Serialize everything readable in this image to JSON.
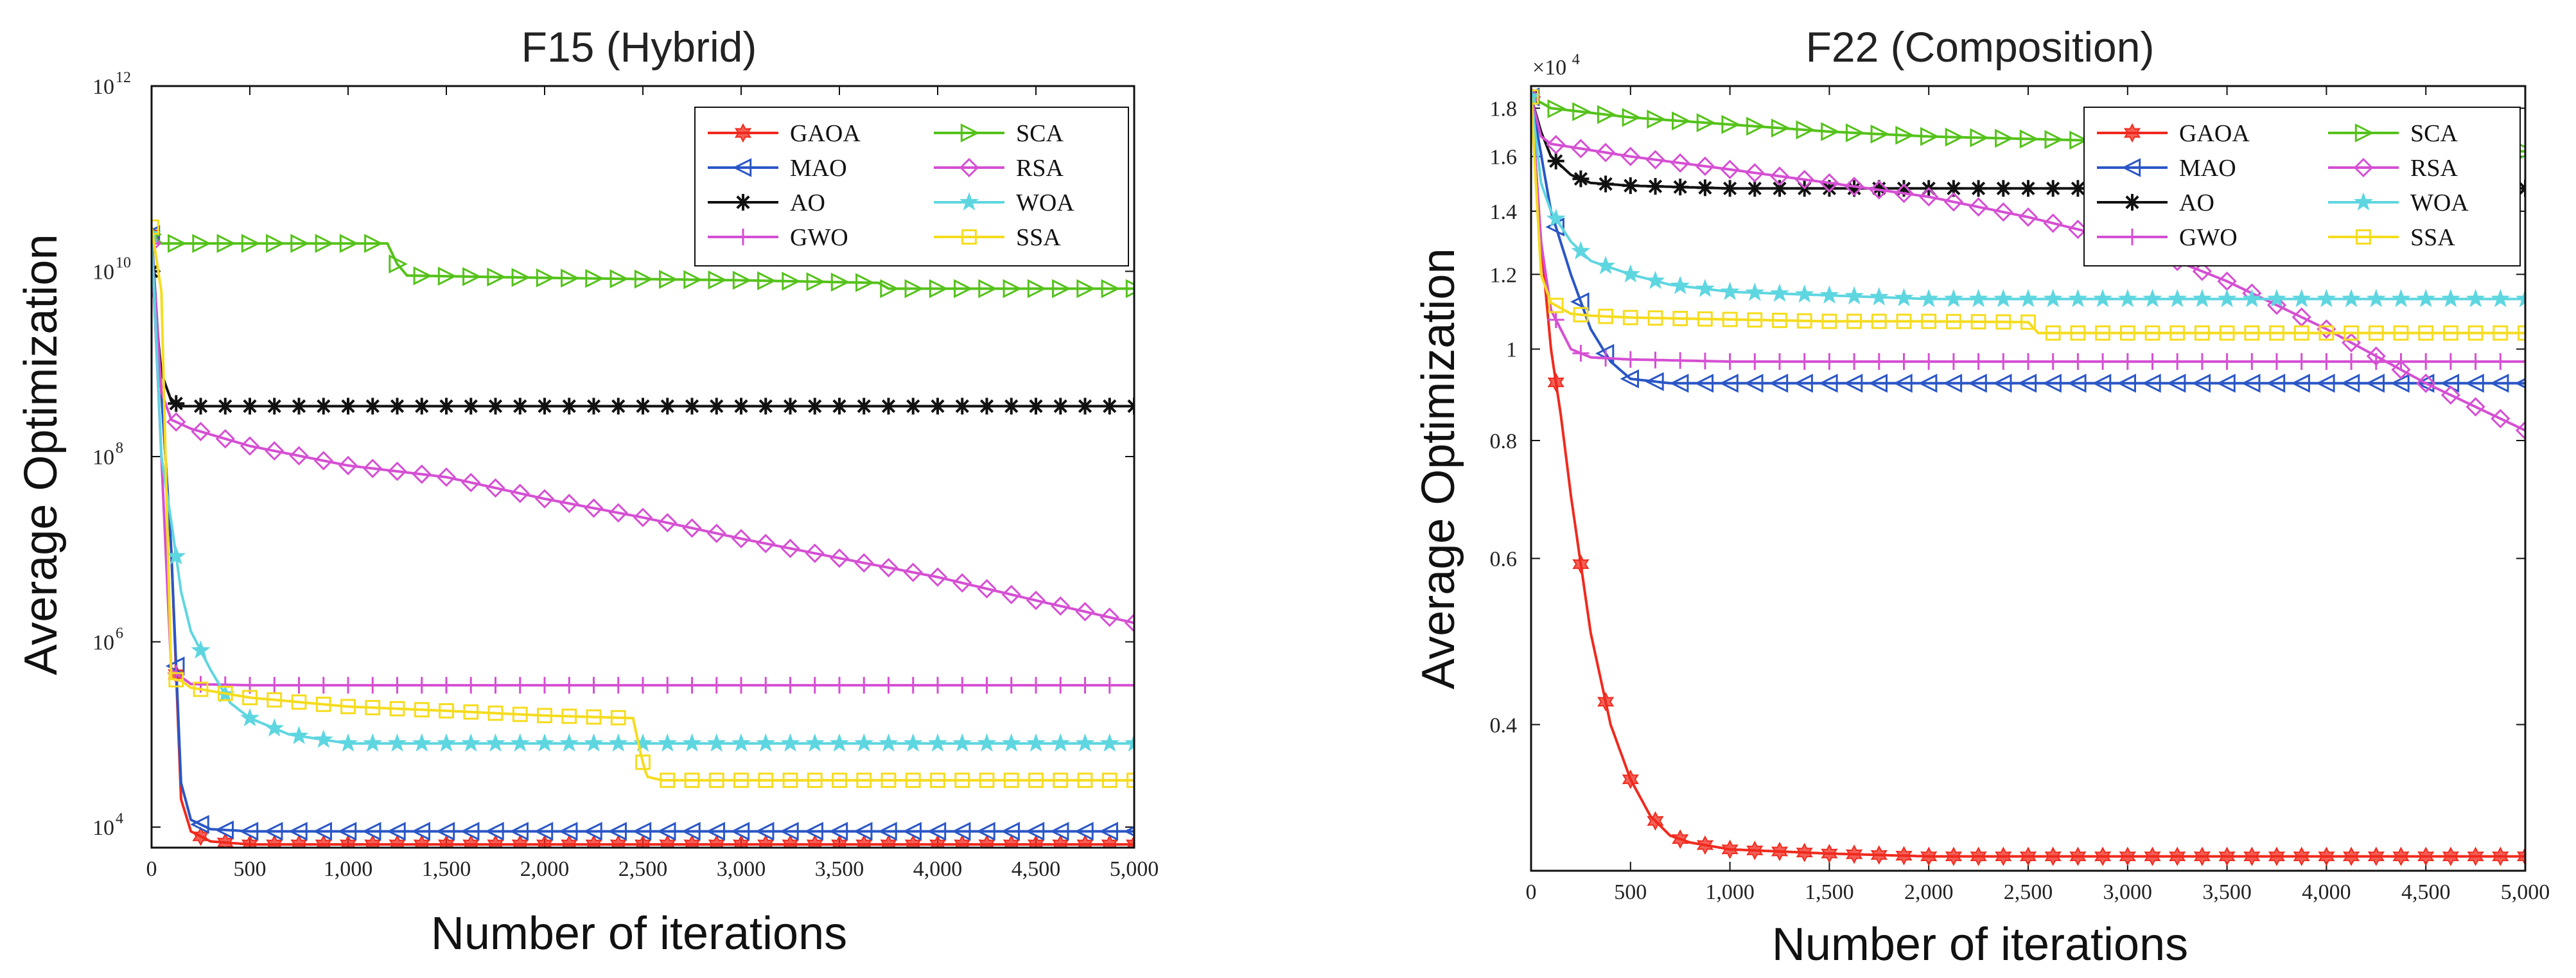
{
  "chart_data": [
    {
      "type": "line",
      "title": "F15 (Hybrid)",
      "xlabel": "Number of iterations",
      "ylabel": "Average Optimization",
      "yscale": "log",
      "xlim": [
        0,
        5000
      ],
      "ylim": [
        6000,
        1000000000000.0
      ],
      "xticks": [
        "0",
        "500",
        "1,000",
        "1,500",
        "2,000",
        "2,500",
        "3,000",
        "3,500",
        "4,000",
        "4,500",
        "5,000"
      ],
      "yticks": [
        {
          "base": "10",
          "exp": "4",
          "value": 10000
        },
        {
          "base": "10",
          "exp": "6",
          "value": 1000000
        },
        {
          "base": "10",
          "exp": "8",
          "value": 100000000
        },
        {
          "base": "10",
          "exp": "10",
          "value": 10000000000
        },
        {
          "base": "10",
          "exp": "12",
          "value": 1000000000000
        }
      ],
      "legend_position": "top-right",
      "series": [
        {
          "name": "GAOA",
          "color": "#f02a1e",
          "marker": "hexstar",
          "x": [
            0,
            100,
            150,
            200,
            300,
            500,
            1000,
            2000,
            3000,
            4000,
            5000
          ],
          "y": [
            25000000000.0,
            10000000.0,
            20000.0,
            9000,
            7000,
            6500,
            6500,
            6500,
            6500,
            6500,
            6500
          ]
        },
        {
          "name": "MAO",
          "color": "#2a56c6",
          "marker": "tri-left",
          "x": [
            0,
            100,
            150,
            200,
            300,
            500,
            1000,
            2000,
            3000,
            4000,
            5000
          ],
          "y": [
            25000000000.0,
            10000000.0,
            30000.0,
            12000.0,
            9500,
            9000,
            9000,
            9000,
            9000,
            9000,
            9000
          ]
        },
        {
          "name": "AO",
          "color": "#111111",
          "marker": "star",
          "x": [
            0,
            50,
            100,
            150,
            300,
            1000,
            2000,
            3000,
            4000,
            5000
          ],
          "y": [
            10000000000.0,
            800000000.0,
            400000000.0,
            350000000.0,
            350000000.0,
            350000000.0,
            350000000.0,
            350000000.0,
            350000000.0,
            350000000.0
          ]
        },
        {
          "name": "GWO",
          "color": "#d54fd3",
          "marker": "plus",
          "x": [
            0,
            50,
            100,
            200,
            500,
            1000,
            2000,
            3000,
            4000,
            5000
          ],
          "y": [
            20000000000.0,
            100000000.0,
            500000.0,
            350000.0,
            340000.0,
            340000.0,
            340000.0,
            340000.0,
            340000.0,
            340000.0
          ]
        },
        {
          "name": "SCA",
          "color": "#55c21b",
          "marker": "tri-right",
          "x": [
            0,
            50,
            1200,
            1250,
            1300,
            2000,
            3000,
            3700,
            3750,
            4000,
            5000
          ],
          "y": [
            25000000000.0,
            20000000000.0,
            20000000000.0,
            12000000000.0,
            9000000000.0,
            8500000000.0,
            8000000000.0,
            7500000000.0,
            6500000000.0,
            6500000000.0,
            6500000000.0
          ]
        },
        {
          "name": "RSA",
          "color": "#d54fd3",
          "marker": "diamond",
          "x": [
            0,
            50,
            100,
            200,
            500,
            1000,
            1500,
            2000,
            2500,
            3000,
            3500,
            4000,
            4500,
            5000
          ],
          "y": [
            20000000000.0,
            500000000.0,
            250000000.0,
            200000000.0,
            130000000.0,
            80000000.0,
            60000000.0,
            35000000.0,
            22000000.0,
            13000000.0,
            8000000.0,
            5000000.0,
            2800000.0,
            1600000.0
          ]
        },
        {
          "name": "WOA",
          "color": "#5ed6e0",
          "marker": "pentstar",
          "x": [
            0,
            50,
            100,
            150,
            200,
            300,
            400,
            500,
            700,
            1000,
            2000,
            3000,
            4000,
            5000
          ],
          "y": [
            25000000000.0,
            100000000.0,
            20000000.0,
            3500000.0,
            1300000.0,
            500000.0,
            220000.0,
            150000.0,
            100000.0,
            80000.0,
            80000.0,
            80000.0,
            80000.0,
            80000.0
          ]
        },
        {
          "name": "SSA",
          "color": "#f5dc1e",
          "marker": "square",
          "x": [
            0,
            50,
            100,
            150,
            200,
            500,
            1000,
            1500,
            2000,
            2450,
            2490,
            2520,
            2600,
            3000,
            4000,
            5000
          ],
          "y": [
            30000000000.0,
            6000000000.0,
            400000.0,
            380000.0,
            320000.0,
            250000.0,
            200000.0,
            180000.0,
            160000.0,
            150000.0,
            60000.0,
            35000.0,
            32000.0,
            32000.0,
            32000.0,
            32000.0
          ]
        }
      ]
    },
    {
      "type": "line",
      "title": "F22 (Composition)",
      "xlabel": "Number of iterations",
      "ylabel": "Average Optimization",
      "yscale": "log",
      "y_multiplier": "×10",
      "y_multiplier_exp": "4",
      "xlim": [
        0,
        5000
      ],
      "ylim": [
        0.28,
        1.9
      ],
      "xticks": [
        "0",
        "500",
        "1,000",
        "1,500",
        "2,000",
        "2,500",
        "3,000",
        "3,500",
        "4,000",
        "4,500",
        "5,000"
      ],
      "yticks": [
        {
          "label": "0.4",
          "value": 0.4
        },
        {
          "label": "0.6",
          "value": 0.6
        },
        {
          "label": "0.8",
          "value": 0.8
        },
        {
          "label": "1",
          "value": 1.0
        },
        {
          "label": "1.2",
          "value": 1.2
        },
        {
          "label": "1.4",
          "value": 1.4
        },
        {
          "label": "1.6",
          "value": 1.6
        },
        {
          "label": "1.8",
          "value": 1.8
        }
      ],
      "legend_position": "top-right",
      "series": [
        {
          "name": "GAOA",
          "color": "#f02a1e",
          "marker": "hexstar",
          "x": [
            0,
            50,
            100,
            150,
            200,
            300,
            400,
            500,
            600,
            700,
            800,
            1000,
            1500,
            2000,
            3000,
            4000,
            5000
          ],
          "y": [
            1.85,
            1.3,
            1.0,
            0.85,
            0.7,
            0.5,
            0.4,
            0.35,
            0.32,
            0.305,
            0.3,
            0.295,
            0.292,
            0.29,
            0.29,
            0.29,
            0.29
          ]
        },
        {
          "name": "MAO",
          "color": "#2a56c6",
          "marker": "tri-left",
          "x": [
            0,
            100,
            200,
            300,
            400,
            500,
            700,
            1000,
            2000,
            3000,
            4000,
            5000
          ],
          "y": [
            1.85,
            1.4,
            1.2,
            1.05,
            0.97,
            0.93,
            0.92,
            0.92,
            0.92,
            0.92,
            0.92,
            0.92
          ]
        },
        {
          "name": "AO",
          "color": "#111111",
          "marker": "star",
          "x": [
            0,
            50,
            100,
            200,
            300,
            500,
            1000,
            2000,
            3000,
            4000,
            5000
          ],
          "y": [
            1.85,
            1.7,
            1.6,
            1.53,
            1.5,
            1.49,
            1.48,
            1.48,
            1.48,
            1.48,
            1.48
          ]
        },
        {
          "name": "GWO",
          "color": "#d54fd3",
          "marker": "plus",
          "x": [
            0,
            50,
            100,
            200,
            300,
            500,
            1000,
            2000,
            3000,
            4000,
            5000
          ],
          "y": [
            1.85,
            1.3,
            1.1,
            1.0,
            0.98,
            0.975,
            0.97,
            0.97,
            0.97,
            0.97,
            0.97
          ]
        },
        {
          "name": "SCA",
          "color": "#55c21b",
          "marker": "tri-right",
          "x": [
            0,
            100,
            500,
            1000,
            1500,
            2000,
            2500,
            3000,
            3500,
            4000,
            4500,
            5000
          ],
          "y": [
            1.85,
            1.8,
            1.76,
            1.73,
            1.7,
            1.68,
            1.67,
            1.66,
            1.65,
            1.64,
            1.63,
            1.62
          ]
        },
        {
          "name": "RSA",
          "color": "#d54fd3",
          "marker": "diamond",
          "x": [
            0,
            50,
            100,
            500,
            1000,
            1500,
            2000,
            2500,
            3000,
            3500,
            4000,
            4500,
            5000
          ],
          "y": [
            1.85,
            1.68,
            1.65,
            1.6,
            1.55,
            1.5,
            1.45,
            1.38,
            1.3,
            1.18,
            1.05,
            0.92,
            0.82
          ]
        },
        {
          "name": "WOA",
          "color": "#5ed6e0",
          "marker": "pentstar",
          "x": [
            0,
            50,
            100,
            200,
            300,
            500,
            700,
            1000,
            1500,
            2000,
            3000,
            4000,
            5000
          ],
          "y": [
            1.85,
            1.5,
            1.4,
            1.3,
            1.24,
            1.2,
            1.17,
            1.15,
            1.14,
            1.13,
            1.13,
            1.13,
            1.13
          ]
        },
        {
          "name": "SSA",
          "color": "#f5dc1e",
          "marker": "square",
          "x": [
            0,
            50,
            100,
            200,
            300,
            500,
            1000,
            1500,
            2000,
            2500,
            2550,
            3000,
            4000,
            5000
          ],
          "y": [
            1.85,
            1.2,
            1.12,
            1.09,
            1.085,
            1.08,
            1.075,
            1.07,
            1.07,
            1.068,
            1.04,
            1.04,
            1.04,
            1.04
          ]
        }
      ]
    }
  ]
}
